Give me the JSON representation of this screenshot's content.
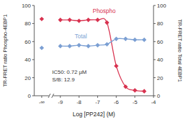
{
  "chart_data": {
    "type": "scatter",
    "xlabel": "Log [PP242] (M)",
    "ylabel": "TR-FRET ratio Phospho-4EBP1",
    "y2label": "TR-FRET ratio Total 4EBP1",
    "annotations": [
      "IC50: 0.72 µM",
      "S/B: 12.9"
    ],
    "x": [
      -10,
      -9,
      -8.5,
      -8,
      -7.5,
      -7,
      -6.5,
      -6,
      -5.5,
      -5,
      -4.5
    ],
    "series": [
      {
        "name": "Phospho",
        "color": "#d8324f",
        "marker": "diamond",
        "values": [
          85,
          84,
          84,
          83,
          84,
          84,
          81,
          33,
          10,
          6,
          5
        ]
      },
      {
        "name": "Total",
        "color": "#7b9fd3",
        "marker": "diamond",
        "axis": "y2",
        "values": [
          53,
          55,
          55,
          56,
          55,
          56,
          57,
          63,
          63,
          62,
          62
        ]
      }
    ],
    "xlim": [
      -10.4,
      -4
    ],
    "xticks": [
      {
        "value": -10,
        "label": "-∞"
      },
      -9,
      -8,
      -7,
      -6,
      -5,
      -4
    ],
    "ylim": [
      0,
      100
    ],
    "yticks": [
      0,
      20,
      40,
      60,
      80,
      100
    ],
    "y2lim": [
      0,
      100
    ],
    "y2ticks": [
      0,
      20,
      40,
      60,
      80,
      100
    ],
    "grid": false
  }
}
